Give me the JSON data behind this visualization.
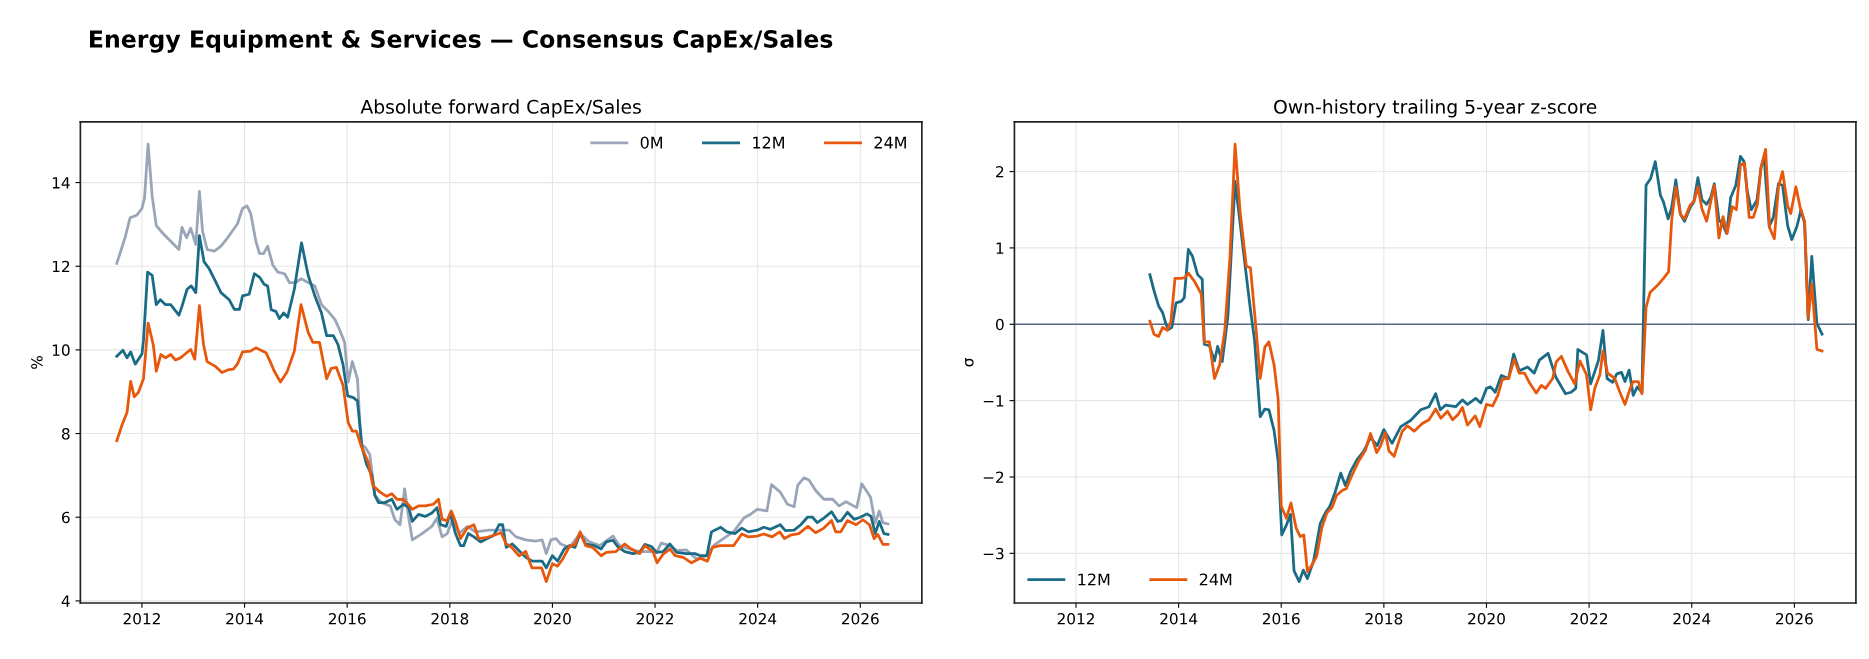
{
  "chart_data": [
    {
      "type": "line",
      "title": "Absolute forward CapEx/Sales",
      "ylabel": "%",
      "annotations": [
        "Energy Equipment & Services — Consensus CapEx/Sales"
      ],
      "xlim": [
        2010.8,
        2027.2
      ],
      "xticks": [
        2012,
        2014,
        2016,
        2018,
        2020,
        2022,
        2024,
        2026
      ],
      "ylim": [
        3.95,
        15.45
      ],
      "yticks": [
        4,
        6,
        8,
        10,
        12,
        14
      ],
      "grid": true,
      "legend": "top right",
      "marker": "none",
      "line_style": "solid",
      "series": [
        {
          "name": "0M",
          "color": "#9aa5b8",
          "x": [
            2011.51,
            2011.67,
            2011.77,
            2011.9,
            2012.0,
            2012.05,
            2012.12,
            2012.2,
            2012.28,
            2012.42,
            2012.59,
            2012.72,
            2012.78,
            2012.87,
            2012.95,
            2013.05,
            2013.12,
            2013.18,
            2013.27,
            2013.41,
            2013.54,
            2013.67,
            2013.86,
            2013.96,
            2014.05,
            2014.12,
            2014.22,
            2014.29,
            2014.37,
            2014.45,
            2014.55,
            2014.65,
            2014.78,
            2014.88,
            2015.01,
            2015.1,
            2015.37,
            2015.5,
            2015.63,
            2015.76,
            2015.86,
            2015.95,
            2016.02,
            2016.1,
            2016.2,
            2016.27,
            2016.35,
            2016.44,
            2016.54,
            2016.67,
            2016.84,
            2016.93,
            2017.03,
            2017.12,
            2017.2,
            2017.27,
            2017.46,
            2017.65,
            2017.75,
            2017.85,
            2017.95,
            2018.05,
            2018.18,
            2018.34,
            2018.5,
            2018.76,
            2018.96,
            2019.16,
            2019.29,
            2019.48,
            2019.67,
            2019.8,
            2019.88,
            2019.97,
            2020.07,
            2020.16,
            2020.33,
            2020.54,
            2020.72,
            2020.92,
            2021.18,
            2021.31,
            2021.5,
            2021.7,
            2021.9,
            2022.03,
            2022.12,
            2022.29,
            2022.42,
            2022.61,
            2022.81,
            2023.01,
            2023.14,
            2023.33,
            2023.53,
            2023.73,
            2023.86,
            2023.99,
            2024.18,
            2024.27,
            2024.44,
            2024.58,
            2024.71,
            2024.78,
            2024.9,
            2025.0,
            2025.13,
            2025.29,
            2025.46,
            2025.59,
            2025.72,
            2025.93,
            2026.03,
            2026.2,
            2026.29,
            2026.37,
            2026.44,
            2026.54
          ],
          "values": [
            12.07,
            12.68,
            13.16,
            13.22,
            13.38,
            13.63,
            14.92,
            13.67,
            12.97,
            12.77,
            12.56,
            12.4,
            12.93,
            12.68,
            12.91,
            12.52,
            13.79,
            12.85,
            12.4,
            12.36,
            12.48,
            12.68,
            13.01,
            13.38,
            13.44,
            13.26,
            12.6,
            12.31,
            12.3,
            12.48,
            12.03,
            11.86,
            11.82,
            11.6,
            11.62,
            11.7,
            11.53,
            11.08,
            10.92,
            10.73,
            10.46,
            10.18,
            9.23,
            9.72,
            9.31,
            7.75,
            7.67,
            7.5,
            6.52,
            6.35,
            6.27,
            5.94,
            5.82,
            6.68,
            5.98,
            5.46,
            5.61,
            5.78,
            5.98,
            5.53,
            5.61,
            5.94,
            5.61,
            5.78,
            5.65,
            5.69,
            5.69,
            5.69,
            5.53,
            5.46,
            5.43,
            5.46,
            5.13,
            5.46,
            5.49,
            5.36,
            5.28,
            5.61,
            5.41,
            5.32,
            5.55,
            5.32,
            5.24,
            5.18,
            5.18,
            5.16,
            5.38,
            5.32,
            5.2,
            5.22,
            5.0,
            5.08,
            5.32,
            5.49,
            5.65,
            5.98,
            6.07,
            6.19,
            6.15,
            6.78,
            6.6,
            6.31,
            6.25,
            6.76,
            6.94,
            6.89,
            6.64,
            6.43,
            6.43,
            6.27,
            6.37,
            6.23,
            6.8,
            6.48,
            5.86,
            6.15,
            5.87,
            5.84
          ]
        },
        {
          "name": "12M",
          "color": "#1a6b85",
          "x": [
            2011.51,
            2011.63,
            2011.71,
            2011.78,
            2011.87,
            2012.0,
            2012.03,
            2012.11,
            2012.2,
            2012.28,
            2012.36,
            2012.46,
            2012.56,
            2012.72,
            2012.78,
            2012.88,
            2012.96,
            2013.05,
            2013.12,
            2013.21,
            2013.31,
            2013.41,
            2013.54,
            2013.7,
            2013.8,
            2013.9,
            2013.96,
            2014.09,
            2014.19,
            2014.29,
            2014.38,
            2014.45,
            2014.52,
            2014.61,
            2014.68,
            2014.76,
            2014.84,
            2014.97,
            2015.11,
            2015.24,
            2015.37,
            2015.5,
            2015.6,
            2015.73,
            2015.82,
            2015.92,
            2016.01,
            2016.12,
            2016.2,
            2016.29,
            2016.38,
            2016.48,
            2016.54,
            2016.61,
            2016.74,
            2016.87,
            2016.97,
            2017.1,
            2017.2,
            2017.27,
            2017.39,
            2017.52,
            2017.65,
            2017.75,
            2017.82,
            2017.93,
            2018.01,
            2018.11,
            2018.21,
            2018.27,
            2018.36,
            2018.47,
            2018.6,
            2018.73,
            2018.86,
            2018.96,
            2019.03,
            2019.1,
            2019.22,
            2019.35,
            2019.48,
            2019.61,
            2019.8,
            2019.88,
            2020.0,
            2020.1,
            2020.23,
            2020.33,
            2020.44,
            2020.54,
            2020.65,
            2020.82,
            2020.95,
            2021.05,
            2021.18,
            2021.27,
            2021.41,
            2021.57,
            2021.7,
            2021.8,
            2021.93,
            2022.03,
            2022.16,
            2022.29,
            2022.42,
            2022.61,
            2022.78,
            2022.88,
            2023.01,
            2023.1,
            2023.28,
            2023.4,
            2023.56,
            2023.69,
            2023.82,
            2023.99,
            2024.12,
            2024.25,
            2024.44,
            2024.54,
            2024.71,
            2024.84,
            2024.97,
            2025.07,
            2025.16,
            2025.29,
            2025.44,
            2025.56,
            2025.63,
            2025.75,
            2025.88,
            2026.0,
            2026.13,
            2026.21,
            2026.29,
            2026.37,
            2026.46,
            2026.54
          ],
          "values": [
            9.85,
            9.99,
            9.81,
            9.95,
            9.66,
            9.9,
            10.22,
            11.86,
            11.78,
            11.08,
            11.2,
            11.08,
            11.08,
            10.83,
            11.04,
            11.45,
            11.53,
            11.37,
            12.73,
            12.11,
            11.94,
            11.7,
            11.37,
            11.2,
            10.97,
            10.97,
            11.29,
            11.33,
            11.82,
            11.74,
            11.57,
            11.53,
            10.96,
            10.92,
            10.75,
            10.88,
            10.78,
            11.45,
            12.56,
            11.78,
            11.29,
            10.88,
            10.34,
            10.34,
            10.13,
            9.64,
            8.9,
            8.86,
            8.78,
            7.67,
            7.26,
            7.01,
            6.52,
            6.35,
            6.35,
            6.43,
            6.19,
            6.31,
            6.23,
            5.9,
            6.07,
            6.02,
            6.1,
            6.23,
            5.82,
            5.78,
            6.1,
            5.61,
            5.32,
            5.32,
            5.61,
            5.53,
            5.41,
            5.49,
            5.57,
            5.82,
            5.82,
            5.28,
            5.36,
            5.2,
            5.04,
            4.95,
            4.95,
            4.79,
            5.08,
            4.95,
            5.24,
            5.32,
            5.28,
            5.61,
            5.36,
            5.32,
            5.24,
            5.41,
            5.45,
            5.3,
            5.18,
            5.13,
            5.16,
            5.35,
            5.3,
            5.16,
            5.18,
            5.36,
            5.16,
            5.13,
            5.13,
            5.08,
            5.08,
            5.65,
            5.76,
            5.65,
            5.61,
            5.74,
            5.65,
            5.69,
            5.76,
            5.71,
            5.82,
            5.68,
            5.69,
            5.82,
            6.0,
            6.0,
            5.87,
            5.98,
            6.13,
            5.9,
            5.92,
            6.12,
            5.95,
            6.0,
            6.08,
            6.02,
            5.61,
            5.9,
            5.61,
            5.59
          ]
        },
        {
          "name": "24M",
          "color": "#e8580c",
          "x": [
            2011.51,
            2011.61,
            2011.71,
            2011.78,
            2011.85,
            2011.93,
            2012.03,
            2012.12,
            2012.22,
            2012.28,
            2012.37,
            2012.46,
            2012.56,
            2012.65,
            2012.75,
            2012.83,
            2012.95,
            2013.03,
            2013.12,
            2013.2,
            2013.27,
            2013.44,
            2013.56,
            2013.67,
            2013.78,
            2013.86,
            2013.96,
            2014.12,
            2014.22,
            2014.42,
            2014.5,
            2014.58,
            2014.7,
            2014.83,
            2014.97,
            2015.1,
            2015.24,
            2015.33,
            2015.46,
            2015.6,
            2015.69,
            2015.79,
            2015.92,
            2016.02,
            2016.1,
            2016.18,
            2016.28,
            2016.41,
            2016.5,
            2016.64,
            2016.77,
            2016.87,
            2016.97,
            2017.1,
            2017.17,
            2017.27,
            2017.39,
            2017.52,
            2017.68,
            2017.78,
            2017.85,
            2017.95,
            2018.03,
            2018.11,
            2018.21,
            2018.34,
            2018.47,
            2018.56,
            2018.7,
            2018.86,
            2019.0,
            2019.1,
            2019.19,
            2019.35,
            2019.48,
            2019.6,
            2019.79,
            2019.88,
            2020.0,
            2020.1,
            2020.2,
            2020.33,
            2020.44,
            2020.54,
            2020.65,
            2020.78,
            2020.95,
            2021.05,
            2021.24,
            2021.41,
            2021.54,
            2021.7,
            2021.8,
            2021.96,
            2022.04,
            2022.16,
            2022.29,
            2022.39,
            2022.55,
            2022.71,
            2022.88,
            2023.02,
            2023.12,
            2023.27,
            2023.53,
            2023.69,
            2023.82,
            2023.99,
            2024.12,
            2024.28,
            2024.43,
            2024.52,
            2024.64,
            2024.8,
            2024.98,
            2025.13,
            2025.29,
            2025.44,
            2025.52,
            2025.62,
            2025.75,
            2025.92,
            2026.05,
            2026.18,
            2026.27,
            2026.34,
            2026.44,
            2026.54
          ],
          "values": [
            7.83,
            8.2,
            8.51,
            9.25,
            8.88,
            8.98,
            9.31,
            10.64,
            10.13,
            9.49,
            9.89,
            9.81,
            9.89,
            9.76,
            9.81,
            9.89,
            10.01,
            9.78,
            11.06,
            10.13,
            9.72,
            9.6,
            9.46,
            9.52,
            9.54,
            9.66,
            9.95,
            9.97,
            10.05,
            9.93,
            9.72,
            9.49,
            9.23,
            9.48,
            9.97,
            11.08,
            10.42,
            10.18,
            10.18,
            9.31,
            9.56,
            9.58,
            9.15,
            8.26,
            8.06,
            8.06,
            7.68,
            7.32,
            6.76,
            6.6,
            6.5,
            6.56,
            6.43,
            6.42,
            6.33,
            6.19,
            6.27,
            6.27,
            6.31,
            6.43,
            5.95,
            5.92,
            6.15,
            5.9,
            5.49,
            5.74,
            5.82,
            5.49,
            5.51,
            5.57,
            5.63,
            5.36,
            5.3,
            5.08,
            5.18,
            4.79,
            4.79,
            4.46,
            4.89,
            4.83,
            5.0,
            5.3,
            5.35,
            5.65,
            5.32,
            5.28,
            5.08,
            5.16,
            5.18,
            5.36,
            5.24,
            5.13,
            5.32,
            5.18,
            4.91,
            5.12,
            5.24,
            5.08,
            5.04,
            4.91,
            5.02,
            4.95,
            5.28,
            5.32,
            5.32,
            5.6,
            5.53,
            5.55,
            5.6,
            5.53,
            5.65,
            5.49,
            5.57,
            5.61,
            5.78,
            5.63,
            5.74,
            5.92,
            5.65,
            5.65,
            5.92,
            5.82,
            5.94,
            5.82,
            5.49,
            5.59,
            5.35,
            5.35
          ]
        }
      ]
    },
    {
      "type": "line",
      "title": "Own-history trailing 5-year z-score",
      "ylabel": "σ",
      "xlim": [
        2010.8,
        2027.2
      ],
      "xticks": [
        2012,
        2014,
        2016,
        2018,
        2020,
        2022,
        2024,
        2026
      ],
      "ylim": [
        -3.65,
        2.65
      ],
      "yticks": [
        {
          "value": -3,
          "label": "−3"
        },
        {
          "value": -2,
          "label": "−2"
        },
        {
          "value": -1,
          "label": "−1"
        },
        0,
        1,
        2
      ],
      "grid": true,
      "legend": "bottom left",
      "marker": "none",
      "line_style": "solid",
      "ref_lines": [
        {
          "axis": "y",
          "value": 0,
          "color": "#5a6a85"
        }
      ],
      "series": [
        {
          "name": "12M",
          "color": "#1a6b85",
          "x": [
            2013.44,
            2013.52,
            2013.61,
            2013.69,
            2013.75,
            2013.8,
            2013.87,
            2013.95,
            2014.05,
            2014.11,
            2014.19,
            2014.27,
            2014.37,
            2014.46,
            2014.5,
            2014.6,
            2014.7,
            2014.76,
            2014.85,
            2014.96,
            2015.1,
            2015.19,
            2015.31,
            2015.4,
            2015.48,
            2015.59,
            2015.68,
            2015.76,
            2015.86,
            2015.94,
            2016.01,
            2016.1,
            2016.18,
            2016.25,
            2016.35,
            2016.43,
            2016.51,
            2016.63,
            2016.76,
            2016.86,
            2016.95,
            2017.05,
            2017.16,
            2017.25,
            2017.35,
            2017.48,
            2017.61,
            2017.74,
            2017.87,
            2018.0,
            2018.16,
            2018.33,
            2018.52,
            2018.72,
            2018.88,
            2019.01,
            2019.1,
            2019.2,
            2019.4,
            2019.53,
            2019.63,
            2019.79,
            2019.89,
            2020.0,
            2020.08,
            2020.17,
            2020.29,
            2020.43,
            2020.53,
            2020.64,
            2020.8,
            2020.93,
            2021.03,
            2021.2,
            2021.35,
            2021.54,
            2021.65,
            2021.74,
            2021.78,
            2021.95,
            2022.03,
            2022.18,
            2022.27,
            2022.35,
            2022.46,
            2022.54,
            2022.63,
            2022.7,
            2022.78,
            2022.86,
            2022.94,
            2023.03,
            2023.11,
            2023.2,
            2023.29,
            2023.39,
            2023.45,
            2023.54,
            2023.61,
            2023.69,
            2023.78,
            2023.86,
            2023.97,
            2024.04,
            2024.12,
            2024.2,
            2024.29,
            2024.37,
            2024.44,
            2024.53,
            2024.61,
            2024.68,
            2024.76,
            2024.86,
            2024.95,
            2025.02,
            2025.08,
            2025.16,
            2025.27,
            2025.35,
            2025.41,
            2025.51,
            2025.59,
            2025.69,
            2025.77,
            2025.87,
            2025.95,
            2026.05,
            2026.13,
            2026.2,
            2026.27,
            2026.34,
            2026.44,
            2026.54
          ],
          "values": [
            0.65,
            0.44,
            0.24,
            0.15,
            0.01,
            -0.07,
            -0.04,
            0.28,
            0.3,
            0.35,
            0.98,
            0.89,
            0.65,
            0.59,
            -0.26,
            -0.28,
            -0.48,
            -0.29,
            -0.49,
            0.1,
            1.87,
            1.37,
            0.69,
            0.19,
            -0.21,
            -1.21,
            -1.11,
            -1.12,
            -1.39,
            -1.79,
            -2.76,
            -2.63,
            -2.49,
            -3.23,
            -3.37,
            -3.22,
            -3.33,
            -3.1,
            -2.61,
            -2.47,
            -2.38,
            -2.2,
            -1.95,
            -2.11,
            -1.93,
            -1.77,
            -1.66,
            -1.48,
            -1.59,
            -1.38,
            -1.56,
            -1.34,
            -1.26,
            -1.12,
            -1.08,
            -0.91,
            -1.12,
            -1.06,
            -1.08,
            -0.99,
            -1.05,
            -0.97,
            -1.03,
            -0.84,
            -0.82,
            -0.89,
            -0.67,
            -0.71,
            -0.39,
            -0.61,
            -0.56,
            -0.64,
            -0.47,
            -0.38,
            -0.69,
            -0.91,
            -0.89,
            -0.84,
            -0.33,
            -0.4,
            -0.78,
            -0.48,
            -0.08,
            -0.71,
            -0.76,
            -0.65,
            -0.63,
            -0.75,
            -0.6,
            -0.93,
            -0.82,
            -0.89,
            1.82,
            1.91,
            2.13,
            1.69,
            1.6,
            1.38,
            1.53,
            1.89,
            1.44,
            1.35,
            1.53,
            1.6,
            1.92,
            1.63,
            1.57,
            1.66,
            1.84,
            1.37,
            1.3,
            1.19,
            1.66,
            1.82,
            2.2,
            2.13,
            1.75,
            1.5,
            1.62,
            2.05,
            2.2,
            1.28,
            1.4,
            1.84,
            1.82,
            1.29,
            1.11,
            1.28,
            1.5,
            1.32,
            0.06,
            0.89,
            0.01,
            -0.13
          ]
        },
        {
          "name": "24M",
          "color": "#e8580c",
          "x": [
            2013.44,
            2013.52,
            2013.61,
            2013.69,
            2013.78,
            2013.85,
            2013.93,
            2014.05,
            2014.12,
            2014.19,
            2014.31,
            2014.44,
            2014.5,
            2014.6,
            2014.7,
            2014.8,
            2014.9,
            2015.0,
            2015.1,
            2015.2,
            2015.32,
            2015.4,
            2015.5,
            2015.59,
            2015.68,
            2015.76,
            2015.86,
            2015.94,
            2016.0,
            2016.1,
            2016.19,
            2016.29,
            2016.37,
            2016.44,
            2016.51,
            2016.6,
            2016.69,
            2016.79,
            2016.89,
            2016.99,
            2017.08,
            2017.18,
            2017.27,
            2017.35,
            2017.51,
            2017.64,
            2017.74,
            2017.86,
            2017.93,
            2018.03,
            2018.1,
            2018.2,
            2018.27,
            2018.36,
            2018.46,
            2018.59,
            2018.75,
            2018.88,
            2019.01,
            2019.11,
            2019.24,
            2019.34,
            2019.45,
            2019.53,
            2019.63,
            2019.78,
            2019.87,
            2020.0,
            2020.12,
            2020.22,
            2020.31,
            2020.43,
            2020.54,
            2020.64,
            2020.74,
            2020.85,
            2020.97,
            2021.07,
            2021.15,
            2021.29,
            2021.36,
            2021.46,
            2021.59,
            2021.72,
            2021.82,
            2021.95,
            2022.03,
            2022.11,
            2022.21,
            2022.27,
            2022.36,
            2022.5,
            2022.6,
            2022.7,
            2022.8,
            2022.86,
            2022.96,
            2023.03,
            2023.11,
            2023.19,
            2023.32,
            2023.45,
            2023.55,
            2023.61,
            2023.69,
            2023.78,
            2023.86,
            2023.97,
            2024.05,
            2024.12,
            2024.2,
            2024.29,
            2024.44,
            2024.53,
            2024.61,
            2024.69,
            2024.79,
            2024.87,
            2024.95,
            2025.03,
            2025.12,
            2025.2,
            2025.28,
            2025.35,
            2025.44,
            2025.52,
            2025.61,
            2025.69,
            2025.77,
            2025.87,
            2025.93,
            2026.03,
            2026.12,
            2026.2,
            2026.27,
            2026.34,
            2026.44,
            2026.54
          ],
          "values": [
            0.04,
            -0.13,
            -0.16,
            -0.04,
            -0.08,
            0.04,
            0.6,
            0.6,
            0.61,
            0.67,
            0.56,
            0.4,
            -0.23,
            -0.23,
            -0.71,
            -0.53,
            -0.08,
            0.87,
            2.36,
            1.46,
            0.76,
            0.74,
            0.01,
            -0.71,
            -0.3,
            -0.23,
            -0.53,
            -0.98,
            -2.38,
            -2.54,
            -2.34,
            -2.67,
            -2.78,
            -2.76,
            -3.24,
            -3.15,
            -3.04,
            -2.67,
            -2.47,
            -2.4,
            -2.24,
            -2.18,
            -2.15,
            -2.02,
            -1.79,
            -1.65,
            -1.43,
            -1.68,
            -1.6,
            -1.42,
            -1.66,
            -1.73,
            -1.58,
            -1.4,
            -1.33,
            -1.4,
            -1.3,
            -1.25,
            -1.11,
            -1.23,
            -1.14,
            -1.25,
            -1.18,
            -1.09,
            -1.32,
            -1.2,
            -1.34,
            -1.05,
            -1.07,
            -0.93,
            -0.72,
            -0.71,
            -0.46,
            -0.64,
            -0.64,
            -0.78,
            -0.9,
            -0.8,
            -0.84,
            -0.71,
            -0.49,
            -0.42,
            -0.62,
            -0.78,
            -0.48,
            -0.66,
            -1.12,
            -0.84,
            -0.66,
            -0.35,
            -0.64,
            -0.71,
            -0.89,
            -1.05,
            -0.84,
            -0.75,
            -0.75,
            -0.91,
            0.22,
            0.42,
            0.5,
            0.6,
            0.69,
            1.37,
            1.8,
            1.44,
            1.38,
            1.56,
            1.62,
            1.8,
            1.51,
            1.35,
            1.82,
            1.13,
            1.41,
            1.19,
            1.54,
            1.5,
            2.09,
            2.11,
            1.4,
            1.4,
            1.57,
            2.05,
            2.29,
            1.26,
            1.12,
            1.8,
            2.0,
            1.55,
            1.45,
            1.8,
            1.51,
            1.35,
            0.08,
            0.53,
            -0.33,
            -0.35
          ]
        }
      ]
    }
  ]
}
